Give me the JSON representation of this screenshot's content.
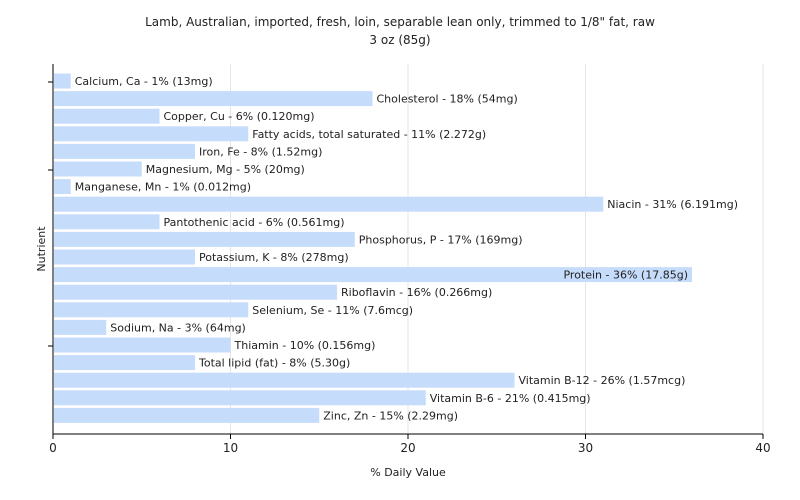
{
  "chart_data": {
    "type": "bar",
    "orientation": "horizontal",
    "title": "Lamb, Australian, imported, fresh, loin, separable lean only, trimmed to 1/8\" fat, raw",
    "subtitle": "3 oz (85g)",
    "xlabel": "% Daily Value",
    "ylabel": "Nutrient",
    "xlim": [
      0,
      40
    ],
    "xticks": [
      0,
      10,
      20,
      30,
      40
    ],
    "grid": true,
    "bar_color": "#c6dcfb",
    "categories": [
      "Calcium, Ca",
      "Cholesterol",
      "Copper, Cu",
      "Fatty acids, total saturated",
      "Iron, Fe",
      "Magnesium, Mg",
      "Manganese, Mn",
      "Niacin",
      "Pantothenic acid",
      "Phosphorus, P",
      "Potassium, K",
      "Protein",
      "Riboflavin",
      "Selenium, Se",
      "Sodium, Na",
      "Thiamin",
      "Total lipid (fat)",
      "Vitamin B-12",
      "Vitamin B-6",
      "Zinc, Zn"
    ],
    "values": [
      1,
      18,
      6,
      11,
      8,
      5,
      1,
      31,
      6,
      17,
      8,
      36,
      16,
      11,
      3,
      10,
      8,
      26,
      21,
      15
    ],
    "labels": [
      "Calcium, Ca - 1% (13mg)",
      "Cholesterol - 18% (54mg)",
      "Copper, Cu - 6% (0.120mg)",
      "Fatty acids, total saturated - 11% (2.272g)",
      "Iron, Fe - 8% (1.52mg)",
      "Magnesium, Mg - 5% (20mg)",
      "Manganese, Mn - 1% (0.012mg)",
      "Niacin - 31% (6.191mg)",
      "Pantothenic acid - 6% (0.561mg)",
      "Phosphorus, P - 17% (169mg)",
      "Potassium, K - 8% (278mg)",
      "Protein - 36% (17.85g)",
      "Riboflavin - 16% (0.266mg)",
      "Selenium, Se - 11% (7.6mcg)",
      "Sodium, Na - 3% (64mg)",
      "Thiamin - 10% (0.156mg)",
      "Total lipid (fat) - 8% (5.30g)",
      "Vitamin B-12 - 26% (1.57mcg)",
      "Vitamin B-6 - 21% (0.415mg)",
      "Zinc, Zn - 15% (2.29mg)"
    ]
  }
}
